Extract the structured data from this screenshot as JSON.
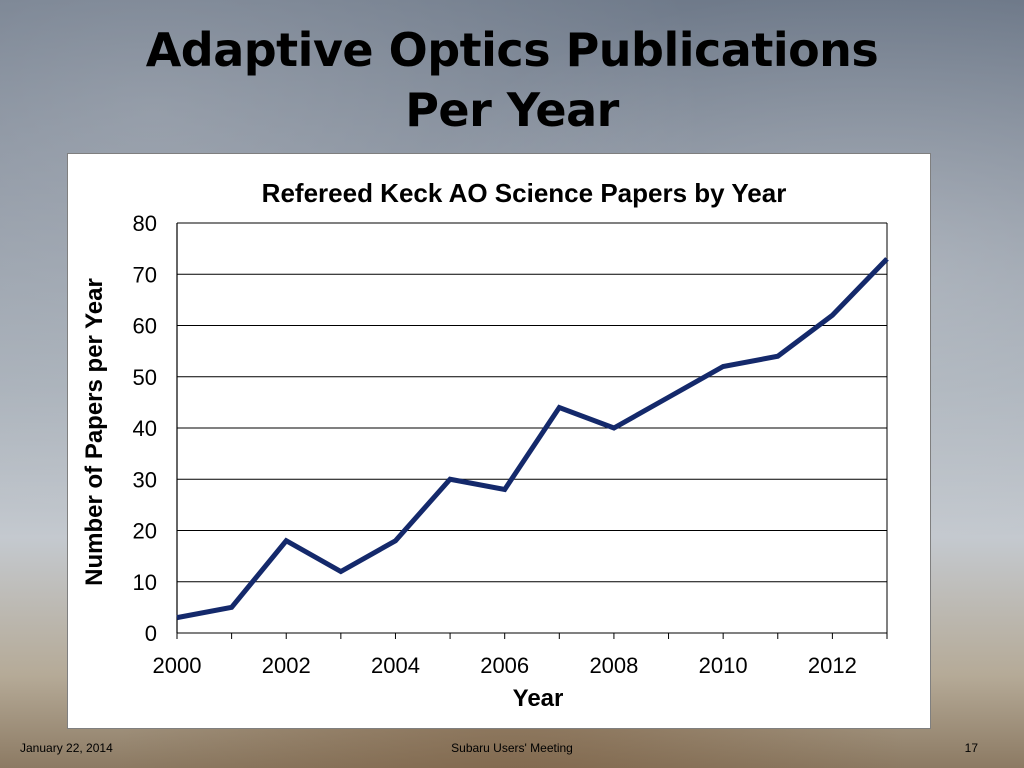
{
  "slide": {
    "title_line1": "Adaptive Optics Publications",
    "title_line2": "Per Year",
    "footer_date": "January 22, 2014",
    "footer_center": "Subaru Users' Meeting",
    "page_number": "17"
  },
  "colors": {
    "series_line": "#14296b",
    "gridline": "#000000",
    "axis_text": "#000000"
  },
  "chart_data": {
    "type": "line",
    "title": "Refereed Keck AO Science Papers by Year",
    "xlabel": "Year",
    "ylabel": "Number of Papers per Year",
    "xlim": [
      2000,
      2013
    ],
    "ylim": [
      0,
      80
    ],
    "x_ticks": [
      2000,
      2002,
      2004,
      2006,
      2008,
      2010,
      2012
    ],
    "y_ticks": [
      0,
      10,
      20,
      30,
      40,
      50,
      60,
      70,
      80
    ],
    "grid": "horizontal",
    "legend": "none",
    "series": [
      {
        "x": [
          2000,
          2001,
          2002,
          2003,
          2004,
          2005,
          2006,
          2007,
          2008,
          2009,
          2010,
          2011,
          2012,
          2013
        ],
        "values": [
          3,
          5,
          18,
          12,
          18,
          30,
          28,
          44,
          40,
          46,
          52,
          54,
          62,
          73
        ]
      }
    ]
  }
}
